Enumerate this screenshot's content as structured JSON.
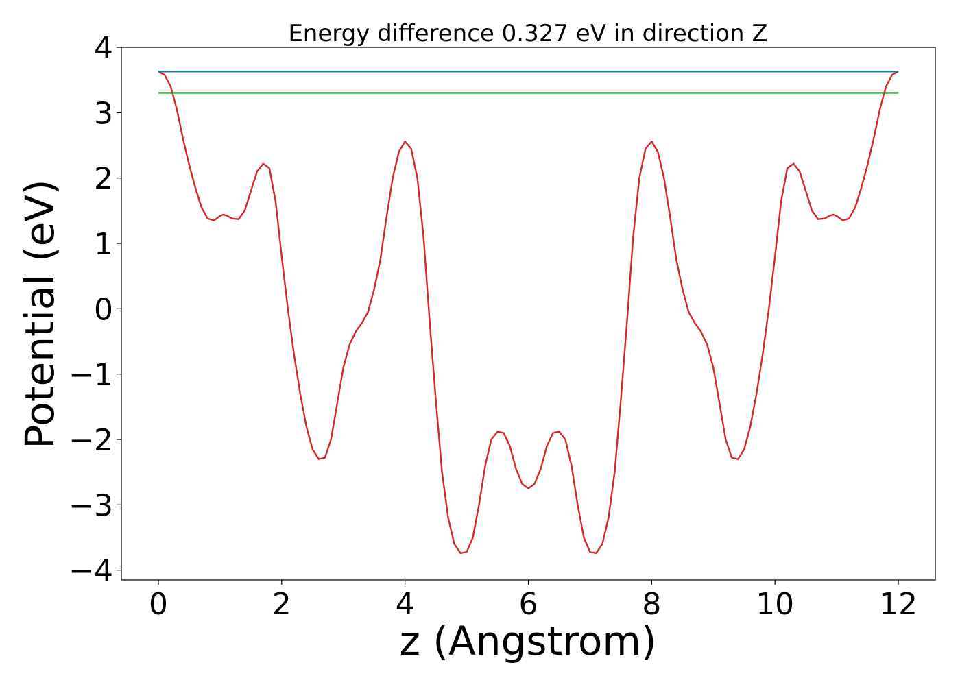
{
  "chart_data": {
    "type": "line",
    "title": "Energy difference 0.327 eV in direction Z",
    "xlabel": "z (Angstrom)",
    "ylabel": "Potential (eV)",
    "xlim": [
      -0.6,
      12.6
    ],
    "ylim": [
      -4.15,
      4.0
    ],
    "xticks": [
      0,
      2,
      4,
      6,
      8,
      10,
      12
    ],
    "xtick_labels": [
      "0",
      "2",
      "4",
      "6",
      "8",
      "10",
      "12"
    ],
    "yticks": [
      -4,
      -3,
      -2,
      -1,
      0,
      1,
      2,
      3,
      4
    ],
    "ytick_labels": [
      "−4",
      "−3",
      "−2",
      "−1",
      "0",
      "1",
      "2",
      "3",
      "4"
    ],
    "grid": false,
    "series": [
      {
        "color": "#d62728",
        "points": [
          [
            0.0,
            3.63
          ],
          [
            0.1,
            3.58
          ],
          [
            0.2,
            3.4
          ],
          [
            0.3,
            3.05
          ],
          [
            0.4,
            2.6
          ],
          [
            0.5,
            2.2
          ],
          [
            0.6,
            1.85
          ],
          [
            0.7,
            1.55
          ],
          [
            0.8,
            1.38
          ],
          [
            0.9,
            1.35
          ],
          [
            1.0,
            1.42
          ],
          [
            1.05,
            1.44
          ],
          [
            1.1,
            1.43
          ],
          [
            1.2,
            1.38
          ],
          [
            1.3,
            1.37
          ],
          [
            1.4,
            1.5
          ],
          [
            1.5,
            1.8
          ],
          [
            1.6,
            2.1
          ],
          [
            1.7,
            2.22
          ],
          [
            1.8,
            2.15
          ],
          [
            1.9,
            1.65
          ],
          [
            2.0,
            0.8
          ],
          [
            2.1,
            0.0
          ],
          [
            2.2,
            -0.7
          ],
          [
            2.3,
            -1.3
          ],
          [
            2.4,
            -1.8
          ],
          [
            2.5,
            -2.15
          ],
          [
            2.6,
            -2.3
          ],
          [
            2.7,
            -2.28
          ],
          [
            2.8,
            -2.0
          ],
          [
            2.9,
            -1.45
          ],
          [
            3.0,
            -0.9
          ],
          [
            3.1,
            -0.55
          ],
          [
            3.2,
            -0.35
          ],
          [
            3.3,
            -0.22
          ],
          [
            3.4,
            -0.05
          ],
          [
            3.5,
            0.3
          ],
          [
            3.6,
            0.75
          ],
          [
            3.7,
            1.4
          ],
          [
            3.8,
            2.0
          ],
          [
            3.9,
            2.4
          ],
          [
            4.0,
            2.56
          ],
          [
            4.1,
            2.45
          ],
          [
            4.2,
            2.0
          ],
          [
            4.3,
            1.1
          ],
          [
            4.4,
            -0.2
          ],
          [
            4.5,
            -1.4
          ],
          [
            4.6,
            -2.5
          ],
          [
            4.7,
            -3.2
          ],
          [
            4.8,
            -3.6
          ],
          [
            4.9,
            -3.74
          ],
          [
            5.0,
            -3.72
          ],
          [
            5.1,
            -3.5
          ],
          [
            5.2,
            -3.0
          ],
          [
            5.3,
            -2.4
          ],
          [
            5.4,
            -2.0
          ],
          [
            5.5,
            -1.88
          ],
          [
            5.6,
            -1.9
          ],
          [
            5.7,
            -2.1
          ],
          [
            5.8,
            -2.45
          ],
          [
            5.9,
            -2.68
          ],
          [
            6.0,
            -2.75
          ],
          [
            6.1,
            -2.68
          ],
          [
            6.2,
            -2.45
          ],
          [
            6.3,
            -2.1
          ],
          [
            6.4,
            -1.9
          ],
          [
            6.5,
            -1.88
          ],
          [
            6.6,
            -2.0
          ],
          [
            6.7,
            -2.4
          ],
          [
            6.8,
            -3.0
          ],
          [
            6.9,
            -3.5
          ],
          [
            7.0,
            -3.72
          ],
          [
            7.1,
            -3.74
          ],
          [
            7.2,
            -3.6
          ],
          [
            7.3,
            -3.2
          ],
          [
            7.4,
            -2.5
          ],
          [
            7.5,
            -1.4
          ],
          [
            7.6,
            -0.2
          ],
          [
            7.7,
            1.1
          ],
          [
            7.8,
            2.0
          ],
          [
            7.9,
            2.45
          ],
          [
            8.0,
            2.56
          ],
          [
            8.1,
            2.4
          ],
          [
            8.2,
            2.0
          ],
          [
            8.3,
            1.4
          ],
          [
            8.4,
            0.75
          ],
          [
            8.5,
            0.3
          ],
          [
            8.6,
            -0.05
          ],
          [
            8.7,
            -0.22
          ],
          [
            8.8,
            -0.35
          ],
          [
            8.9,
            -0.55
          ],
          [
            9.0,
            -0.9
          ],
          [
            9.1,
            -1.45
          ],
          [
            9.2,
            -2.0
          ],
          [
            9.3,
            -2.28
          ],
          [
            9.4,
            -2.3
          ],
          [
            9.5,
            -2.15
          ],
          [
            9.6,
            -1.8
          ],
          [
            9.7,
            -1.3
          ],
          [
            9.8,
            -0.7
          ],
          [
            9.9,
            0.0
          ],
          [
            10.0,
            0.8
          ],
          [
            10.1,
            1.65
          ],
          [
            10.2,
            2.15
          ],
          [
            10.3,
            2.22
          ],
          [
            10.4,
            2.1
          ],
          [
            10.5,
            1.8
          ],
          [
            10.6,
            1.5
          ],
          [
            10.7,
            1.37
          ],
          [
            10.8,
            1.38
          ],
          [
            10.9,
            1.43
          ],
          [
            10.95,
            1.44
          ],
          [
            11.0,
            1.42
          ],
          [
            11.1,
            1.35
          ],
          [
            11.2,
            1.38
          ],
          [
            11.3,
            1.55
          ],
          [
            11.4,
            1.85
          ],
          [
            11.5,
            2.2
          ],
          [
            11.6,
            2.6
          ],
          [
            11.7,
            3.05
          ],
          [
            11.8,
            3.4
          ],
          [
            11.9,
            3.58
          ],
          [
            12.0,
            3.63
          ]
        ]
      },
      {
        "color": "#1f77b4",
        "points": [
          [
            0.0,
            3.63
          ],
          [
            12.0,
            3.63
          ]
        ]
      },
      {
        "color": "#2ca02c",
        "points": [
          [
            0.0,
            3.303
          ],
          [
            12.0,
            3.303
          ]
        ]
      }
    ]
  }
}
